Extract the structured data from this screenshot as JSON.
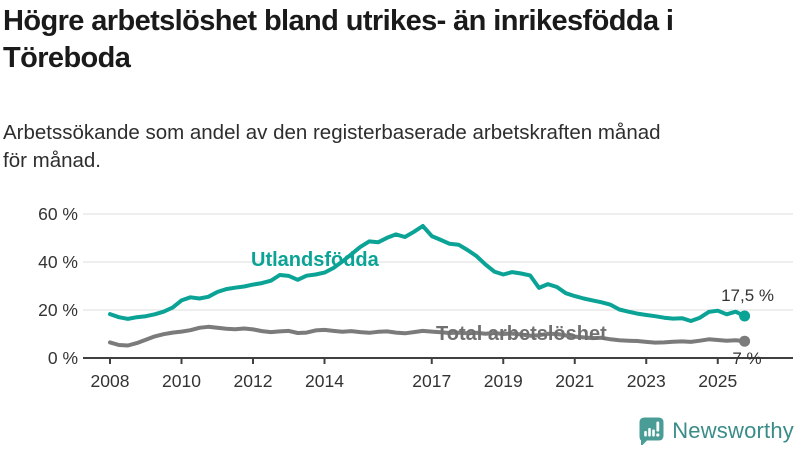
{
  "header": {
    "title_lines": [
      "Högre arbetslöshet bland utrikes- än inrikesfödda i",
      "Töreboda"
    ],
    "subtitle_lines": [
      "Arbetssökande som andel av den registerbaserade arbetskraften månad",
      "för månad."
    ]
  },
  "chart_data": {
    "type": "line",
    "title": "Högre arbetslöshet bland utrikes- än inrikesfödda i Töreboda",
    "subtitle": "Arbetssökande som andel av den registerbaserade arbetskraften månad för månad.",
    "xlabel": "",
    "ylabel": "",
    "y_unit": "%",
    "xlim": [
      2008,
      2025.75
    ],
    "ylim": [
      0,
      60
    ],
    "grid": true,
    "legend_position": "inline-labels",
    "x": [
      2008,
      2008.25,
      2008.5,
      2008.75,
      2009,
      2009.25,
      2009.5,
      2009.75,
      2010,
      2010.25,
      2010.5,
      2010.75,
      2011,
      2011.25,
      2011.5,
      2011.75,
      2012,
      2012.25,
      2012.5,
      2012.75,
      2013,
      2013.25,
      2013.5,
      2013.75,
      2014,
      2014.25,
      2014.5,
      2014.75,
      2015,
      2015.25,
      2015.5,
      2015.75,
      2016,
      2016.25,
      2016.5,
      2016.75,
      2017,
      2017.25,
      2017.5,
      2017.75,
      2018,
      2018.25,
      2018.5,
      2018.75,
      2019,
      2019.25,
      2019.5,
      2019.75,
      2020,
      2020.25,
      2020.5,
      2020.75,
      2021,
      2021.25,
      2021.5,
      2021.75,
      2022,
      2022.25,
      2022.5,
      2022.75,
      2023,
      2023.25,
      2023.5,
      2023.75,
      2024,
      2024.25,
      2024.5,
      2024.75,
      2025,
      2025.25,
      2025.5,
      2025.75
    ],
    "series": [
      {
        "name": "Utlandsfödda",
        "key": "utlandsfodda",
        "color": "#0aa396",
        "end_label": "17,5 %",
        "end_value": 17.5,
        "values": [
          18.3,
          17.0,
          16.3,
          17.0,
          17.4,
          18.2,
          19.3,
          21.0,
          24.0,
          25.3,
          24.8,
          25.5,
          27.5,
          28.7,
          29.3,
          29.8,
          30.6,
          31.2,
          32.2,
          34.6,
          34.2,
          32.6,
          34.3,
          34.8,
          35.6,
          37.5,
          40.2,
          43.2,
          46.3,
          48.6,
          48.2,
          50.1,
          51.5,
          50.4,
          52.6,
          55.0,
          50.8,
          49.2,
          47.6,
          47.2,
          45.0,
          42.5,
          39.0,
          36.0,
          34.8,
          35.8,
          35.2,
          34.4,
          29.2,
          30.8,
          29.6,
          27.0,
          25.8,
          24.8,
          24.0,
          23.2,
          22.2,
          20.2,
          19.3,
          18.5,
          17.9,
          17.4,
          16.8,
          16.4,
          16.6,
          15.4,
          16.8,
          19.2,
          19.7,
          18.2,
          19.3,
          17.5
        ]
      },
      {
        "name": "Total arbetslöshet",
        "key": "total",
        "color": "#7b7b7b",
        "end_label": "7 %",
        "end_value": 7,
        "values": [
          6.5,
          5.4,
          5.2,
          6.2,
          7.6,
          9.0,
          9.9,
          10.6,
          11.0,
          11.6,
          12.6,
          13.0,
          12.6,
          12.2,
          12.0,
          12.3,
          11.9,
          11.2,
          10.8,
          11.1,
          11.3,
          10.4,
          10.6,
          11.5,
          11.7,
          11.3,
          10.9,
          11.2,
          10.8,
          10.5,
          10.9,
          11.1,
          10.6,
          10.3,
          10.8,
          11.3,
          11.0,
          10.7,
          10.4,
          10.6,
          10.3,
          10.5,
          10.1,
          10.4,
          10.0,
          10.2,
          9.8,
          9.3,
          9.5,
          10.1,
          10.0,
          9.4,
          8.9,
          8.6,
          8.3,
          8.4,
          7.8,
          7.4,
          7.2,
          7.1,
          6.7,
          6.4,
          6.5,
          6.8,
          6.9,
          6.7,
          7.2,
          7.8,
          7.5,
          7.2,
          7.4,
          7.0
        ]
      }
    ],
    "x_ticks": [
      {
        "label": "2008",
        "year": 2008
      },
      {
        "label": "2010",
        "year": 2010
      },
      {
        "label": "2012",
        "year": 2012
      },
      {
        "label": "2014",
        "year": 2014
      },
      {
        "label": "2017",
        "year": 2017
      },
      {
        "label": "2019",
        "year": 2019
      },
      {
        "label": "2021",
        "year": 2021
      },
      {
        "label": "2023",
        "year": 2023
      },
      {
        "label": "2025",
        "year": 2025
      }
    ],
    "y_ticks": [
      {
        "label": "0 %",
        "value": 0
      },
      {
        "label": "20 %",
        "value": 20
      },
      {
        "label": "40 %",
        "value": 40
      },
      {
        "label": "60 %",
        "value": 60
      }
    ],
    "colors": {
      "grid": "#e3e3e3",
      "axis": "#404040",
      "axis_text": "#333333"
    }
  },
  "branding": {
    "logo_text": "Newsworthy",
    "logo_text_color": "#3a8c88",
    "icon_color": "#4a9c97",
    "icon": "speech-bubble-bar-chart"
  }
}
